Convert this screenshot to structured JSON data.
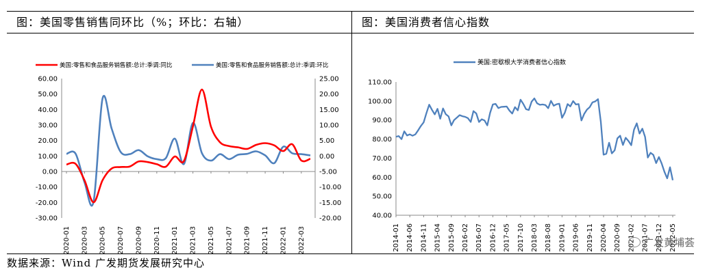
{
  "left_panel": {
    "title": "图：美国零售销售同环比（%；环比：右轴）"
  },
  "right_panel": {
    "title": "图：美国消费者信心指数"
  },
  "source_text": "数据来源：Wind 广发期货发展研究中心",
  "watermark": "广发黄埔荟",
  "colors": {
    "red_series": "#ff0000",
    "blue_series": "#4f81bd",
    "axis": "#888888"
  },
  "chart_data": [
    {
      "type": "line",
      "title": "",
      "x": [
        "2020-01",
        "2020-02",
        "2020-03",
        "2020-04",
        "2020-05",
        "2020-06",
        "2020-07",
        "2020-08",
        "2020-09",
        "2020-10",
        "2020-11",
        "2020-12",
        "2021-01",
        "2021-02",
        "2021-03",
        "2021-04",
        "2021-05",
        "2021-06",
        "2021-07",
        "2021-08",
        "2021-09",
        "2021-10",
        "2021-11",
        "2021-12",
        "2022-01",
        "2022-02",
        "2022-03",
        "2022-04"
      ],
      "x_tick_labels": [
        "2020-01",
        "2020-03",
        "2020-05",
        "2020-07",
        "2020-09",
        "2020-11",
        "2021-01",
        "2021-03",
        "2021-05",
        "2021-07",
        "2021-09",
        "2021-11",
        "2022-01",
        "2022-03"
      ],
      "left_axis": {
        "ylim": [
          -30,
          60
        ],
        "ticks": [
          "60.00",
          "50.00",
          "40.00",
          "30.00",
          "20.00",
          "10.00",
          "0.00",
          "-10.00",
          "-20.00",
          "-30.00"
        ]
      },
      "right_axis": {
        "ylim": [
          -20,
          25
        ],
        "ticks": [
          "25.00",
          "20.00",
          "15.00",
          "10.00",
          "5.00",
          "0.00",
          "-5.00",
          "-10.00",
          "-15.00",
          "-20.00"
        ]
      },
      "legend_position": "top",
      "series": [
        {
          "name": "美国:零售和食品服务销售额:总计:季调:同比",
          "axis": "left",
          "color": "#ff0000",
          "values": [
            4.5,
            5.0,
            -5.7,
            -19.9,
            -5.6,
            1.9,
            2.9,
            3.2,
            6.5,
            6.1,
            4.7,
            3.1,
            9.7,
            6.7,
            29.1,
            52.9,
            28.9,
            18.9,
            16.4,
            15.6,
            14.6,
            17.2,
            18.3,
            16.9,
            13.2,
            17.6,
            7.1,
            8.2
          ]
        },
        {
          "name": "美国:零售和食品服务销售额:总计:季调:环比",
          "axis": "right",
          "color": "#4f81bd",
          "values": [
            0.7,
            0.8,
            -8.5,
            -14.7,
            18.6,
            8.9,
            1.3,
            0.6,
            1.9,
            -0.1,
            -1.0,
            -0.7,
            5.6,
            -2.6,
            10.7,
            0.9,
            -1.5,
            0.6,
            -1.0,
            0.4,
            0.7,
            1.5,
            0.2,
            -2.3,
            3.0,
            0.9,
            0.6,
            0.2
          ]
        }
      ]
    },
    {
      "type": "line",
      "title": "",
      "x_tick_labels": [
        "2014-01",
        "2014-06",
        "2014-11",
        "2015-04",
        "2015-09",
        "2016-02",
        "2016-07",
        "2016-12",
        "2017-05",
        "2017-10",
        "2018-03",
        "2018-08",
        "2019-01",
        "2019-06",
        "2019-11",
        "2020-04",
        "2020-09",
        "2021-02",
        "2021-07",
        "2021-12",
        "2022-05"
      ],
      "ylim": [
        40,
        110
      ],
      "y_ticks": [
        "110.00",
        "100.00",
        "90.00",
        "80.00",
        "70.00",
        "60.00",
        "50.00",
        "40.00"
      ],
      "legend_position": "top-left",
      "series": [
        {
          "name": "美国:密歇根大学消费者信心指数",
          "color": "#4f81bd",
          "values": [
            81.2,
            81.6,
            80.0,
            84.1,
            81.9,
            82.5,
            81.8,
            82.5,
            84.6,
            86.9,
            88.8,
            93.6,
            98.1,
            95.4,
            93.0,
            95.9,
            90.7,
            96.1,
            93.1,
            91.9,
            87.2,
            90.0,
            91.3,
            92.6,
            92.0,
            91.7,
            91.0,
            89.0,
            94.7,
            93.5,
            89.0,
            90.4,
            89.8,
            87.2,
            93.8,
            98.2,
            98.5,
            96.3,
            96.9,
            97.0,
            97.1,
            95.0,
            93.4,
            96.8,
            95.1,
            100.7,
            98.5,
            95.7,
            95.3,
            99.7,
            101.4,
            98.8,
            98.0,
            98.2,
            97.9,
            96.2,
            100.1,
            97.5,
            98.3,
            98.6,
            91.2,
            93.8,
            98.4,
            97.2,
            100.0,
            98.2,
            98.4,
            89.8,
            93.2,
            95.5,
            96.8,
            99.3,
            99.8,
            101.0,
            89.1,
            71.8,
            72.3,
            78.1,
            72.5,
            74.1,
            80.4,
            81.8,
            76.9,
            80.7,
            79.0,
            76.8,
            84.9,
            88.3,
            82.9,
            85.5,
            81.2,
            70.3,
            72.8,
            71.7,
            67.4,
            70.6,
            67.2,
            62.8,
            59.4,
            65.2,
            58.4
          ]
        }
      ]
    }
  ]
}
